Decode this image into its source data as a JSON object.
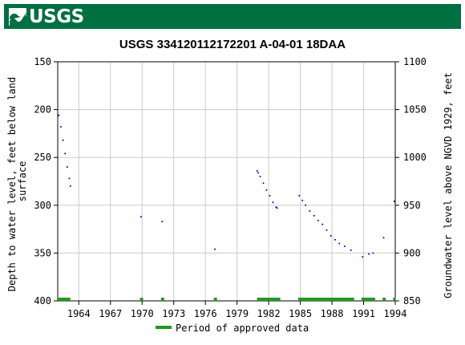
{
  "header": {
    "logo_text": "USGS"
  },
  "chart_data": {
    "type": "scatter",
    "title": "USGS 334120112172201 A-04-01 18DAA",
    "ylabel_left": "Depth to water level, feet below land surface",
    "ylabel_left_lines": [
      "Depth to water level, feet below land",
      "surface"
    ],
    "ylabel_right": "Groundwater level above NGVD 1929, feet",
    "x_ticks": [
      "1964",
      "1967",
      "1970",
      "1973",
      "1976",
      "1979",
      "1982",
      "1985",
      "1988",
      "1991",
      "1994"
    ],
    "xlim": [
      1962.0,
      1994.0
    ],
    "y_left_ticks": [
      "150",
      "200",
      "250",
      "300",
      "350",
      "400"
    ],
    "ylim_left": [
      150,
      400
    ],
    "y_right_ticks": [
      "1100",
      "1050",
      "1000",
      "950",
      "900",
      "850"
    ],
    "ylim_right": [
      1100,
      850
    ],
    "grid": true,
    "series": [
      {
        "color": "#0000cc",
        "points": [
          [
            1962.1,
            206
          ],
          [
            1962.3,
            218
          ],
          [
            1962.5,
            232
          ],
          [
            1962.7,
            246
          ],
          [
            1962.9,
            260
          ],
          [
            1963.1,
            272
          ],
          [
            1963.2,
            280
          ],
          [
            1969.9,
            312
          ],
          [
            1971.9,
            317
          ],
          [
            1976.9,
            346
          ],
          [
            1980.9,
            264
          ],
          [
            1981.0,
            266
          ],
          [
            1981.2,
            270
          ],
          [
            1981.5,
            277
          ],
          [
            1981.8,
            284
          ],
          [
            1982.1,
            290
          ],
          [
            1982.4,
            297
          ],
          [
            1982.7,
            302
          ],
          [
            1982.8,
            303
          ],
          [
            1984.9,
            290
          ],
          [
            1985.2,
            295
          ],
          [
            1985.5,
            300
          ],
          [
            1985.9,
            306
          ],
          [
            1986.3,
            311
          ],
          [
            1986.7,
            316
          ],
          [
            1987.1,
            320
          ],
          [
            1987.5,
            326
          ],
          [
            1987.9,
            332
          ],
          [
            1988.3,
            336
          ],
          [
            1988.7,
            340
          ],
          [
            1989.2,
            343
          ],
          [
            1989.8,
            347
          ],
          [
            1990.9,
            354
          ],
          [
            1991.5,
            351
          ],
          [
            1991.9,
            350
          ],
          [
            1992.9,
            334
          ],
          [
            1993.9,
            296
          ]
        ]
      }
    ],
    "approved_periods": [
      [
        1962.0,
        1963.2
      ],
      [
        1969.8,
        1970.1
      ],
      [
        1971.8,
        1972.1
      ],
      [
        1976.8,
        1977.1
      ],
      [
        1980.9,
        1983.1
      ],
      [
        1984.8,
        1990.1
      ],
      [
        1990.8,
        1992.1
      ],
      [
        1992.8,
        1993.1
      ],
      [
        1993.8,
        1994.0
      ]
    ],
    "approved_color": "#229922",
    "legend": {
      "label": "Period of approved data",
      "placement": "bottom-center"
    }
  }
}
